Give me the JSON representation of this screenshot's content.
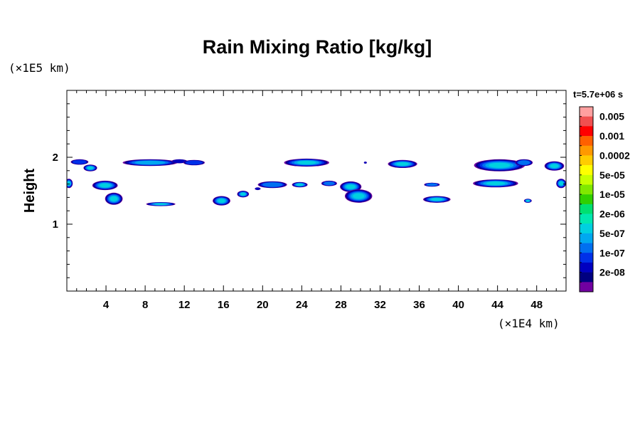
{
  "chart_data": {
    "type": "contour",
    "title": "Rain Mixing Ratio [kg/kg]",
    "ylabel": "Height",
    "xlabel": "",
    "x_unit": "(×1E4 km)",
    "y_unit": "(×1E5 km)",
    "time_label": "t=5.7e+06 s",
    "xlim": [
      0,
      51
    ],
    "ylim": [
      0,
      3
    ],
    "x_ticks": [
      4,
      8,
      12,
      16,
      20,
      24,
      28,
      32,
      36,
      40,
      44,
      48
    ],
    "x_tick_labels": [
      "4",
      "8",
      "12",
      "16",
      "20",
      "24",
      "28",
      "32",
      "36",
      "40",
      "44",
      "48"
    ],
    "y_ticks": [
      1,
      2
    ],
    "y_tick_labels": [
      "1",
      "2"
    ],
    "colorbar": {
      "labels": [
        "0.005",
        "0.001",
        "0.0002",
        "5e-05",
        "1e-05",
        "2e-06",
        "5e-07",
        "1e-07",
        "2e-08"
      ],
      "colors": [
        "#ffa0a0",
        "#f05050",
        "#ff0000",
        "#ff6000",
        "#ff9900",
        "#ffcc00",
        "#ffff00",
        "#c8ff00",
        "#80e800",
        "#30d000",
        "#00e070",
        "#00e8b0",
        "#00d0e0",
        "#00a8f0",
        "#0070f0",
        "#0030e8",
        "#0000c0",
        "#000080",
        "#7000a0"
      ]
    },
    "rain_regions": [
      {
        "x": 1.3,
        "y": 1.93,
        "rx": 0.9,
        "ry": 0.04,
        "level": 16
      },
      {
        "x": 2.4,
        "y": 1.84,
        "rx": 0.7,
        "ry": 0.05,
        "level": 13
      },
      {
        "x": 0.2,
        "y": 1.61,
        "rx": 0.4,
        "ry": 0.07,
        "level": 13
      },
      {
        "x": 3.9,
        "y": 1.58,
        "rx": 1.3,
        "ry": 0.07,
        "level": 13
      },
      {
        "x": 4.8,
        "y": 1.38,
        "rx": 0.9,
        "ry": 0.09,
        "level": 11
      },
      {
        "x": 8.5,
        "y": 1.92,
        "rx": 2.8,
        "ry": 0.05,
        "level": 14
      },
      {
        "x": 11.5,
        "y": 1.94,
        "rx": 0.8,
        "ry": 0.03,
        "level": 17
      },
      {
        "x": 13.0,
        "y": 1.92,
        "rx": 1.1,
        "ry": 0.04,
        "level": 16
      },
      {
        "x": 9.6,
        "y": 1.3,
        "rx": 1.5,
        "ry": 0.03,
        "level": 12
      },
      {
        "x": 15.8,
        "y": 1.35,
        "rx": 0.9,
        "ry": 0.07,
        "level": 11
      },
      {
        "x": 18.0,
        "y": 1.45,
        "rx": 0.6,
        "ry": 0.05,
        "level": 13
      },
      {
        "x": 21.0,
        "y": 1.59,
        "rx": 1.5,
        "ry": 0.05,
        "level": 15
      },
      {
        "x": 23.8,
        "y": 1.59,
        "rx": 0.8,
        "ry": 0.04,
        "level": 13
      },
      {
        "x": 24.5,
        "y": 1.92,
        "rx": 2.3,
        "ry": 0.06,
        "level": 13
      },
      {
        "x": 26.8,
        "y": 1.61,
        "rx": 0.8,
        "ry": 0.04,
        "level": 15
      },
      {
        "x": 29.0,
        "y": 1.56,
        "rx": 1.1,
        "ry": 0.08,
        "level": 11
      },
      {
        "x": 29.8,
        "y": 1.42,
        "rx": 1.4,
        "ry": 0.1,
        "level": 12
      },
      {
        "x": 34.3,
        "y": 1.9,
        "rx": 1.5,
        "ry": 0.06,
        "level": 13
      },
      {
        "x": 37.3,
        "y": 1.59,
        "rx": 0.8,
        "ry": 0.03,
        "level": 15
      },
      {
        "x": 37.8,
        "y": 1.37,
        "rx": 1.4,
        "ry": 0.05,
        "level": 12
      },
      {
        "x": 44.2,
        "y": 1.88,
        "rx": 2.6,
        "ry": 0.09,
        "level": 11
      },
      {
        "x": 46.7,
        "y": 1.92,
        "rx": 0.9,
        "ry": 0.05,
        "level": 15
      },
      {
        "x": 49.8,
        "y": 1.87,
        "rx": 1.0,
        "ry": 0.07,
        "level": 12
      },
      {
        "x": 43.8,
        "y": 1.61,
        "rx": 2.3,
        "ry": 0.06,
        "level": 13
      },
      {
        "x": 50.5,
        "y": 1.61,
        "rx": 0.5,
        "ry": 0.07,
        "level": 13
      },
      {
        "x": 47.1,
        "y": 1.35,
        "rx": 0.4,
        "ry": 0.03,
        "level": 12
      },
      {
        "x": 19.5,
        "y": 1.53,
        "rx": 0.3,
        "ry": 0.02,
        "level": 18
      },
      {
        "x": 30.5,
        "y": 1.92,
        "rx": 0.15,
        "ry": 0.015,
        "level": 17
      }
    ]
  }
}
